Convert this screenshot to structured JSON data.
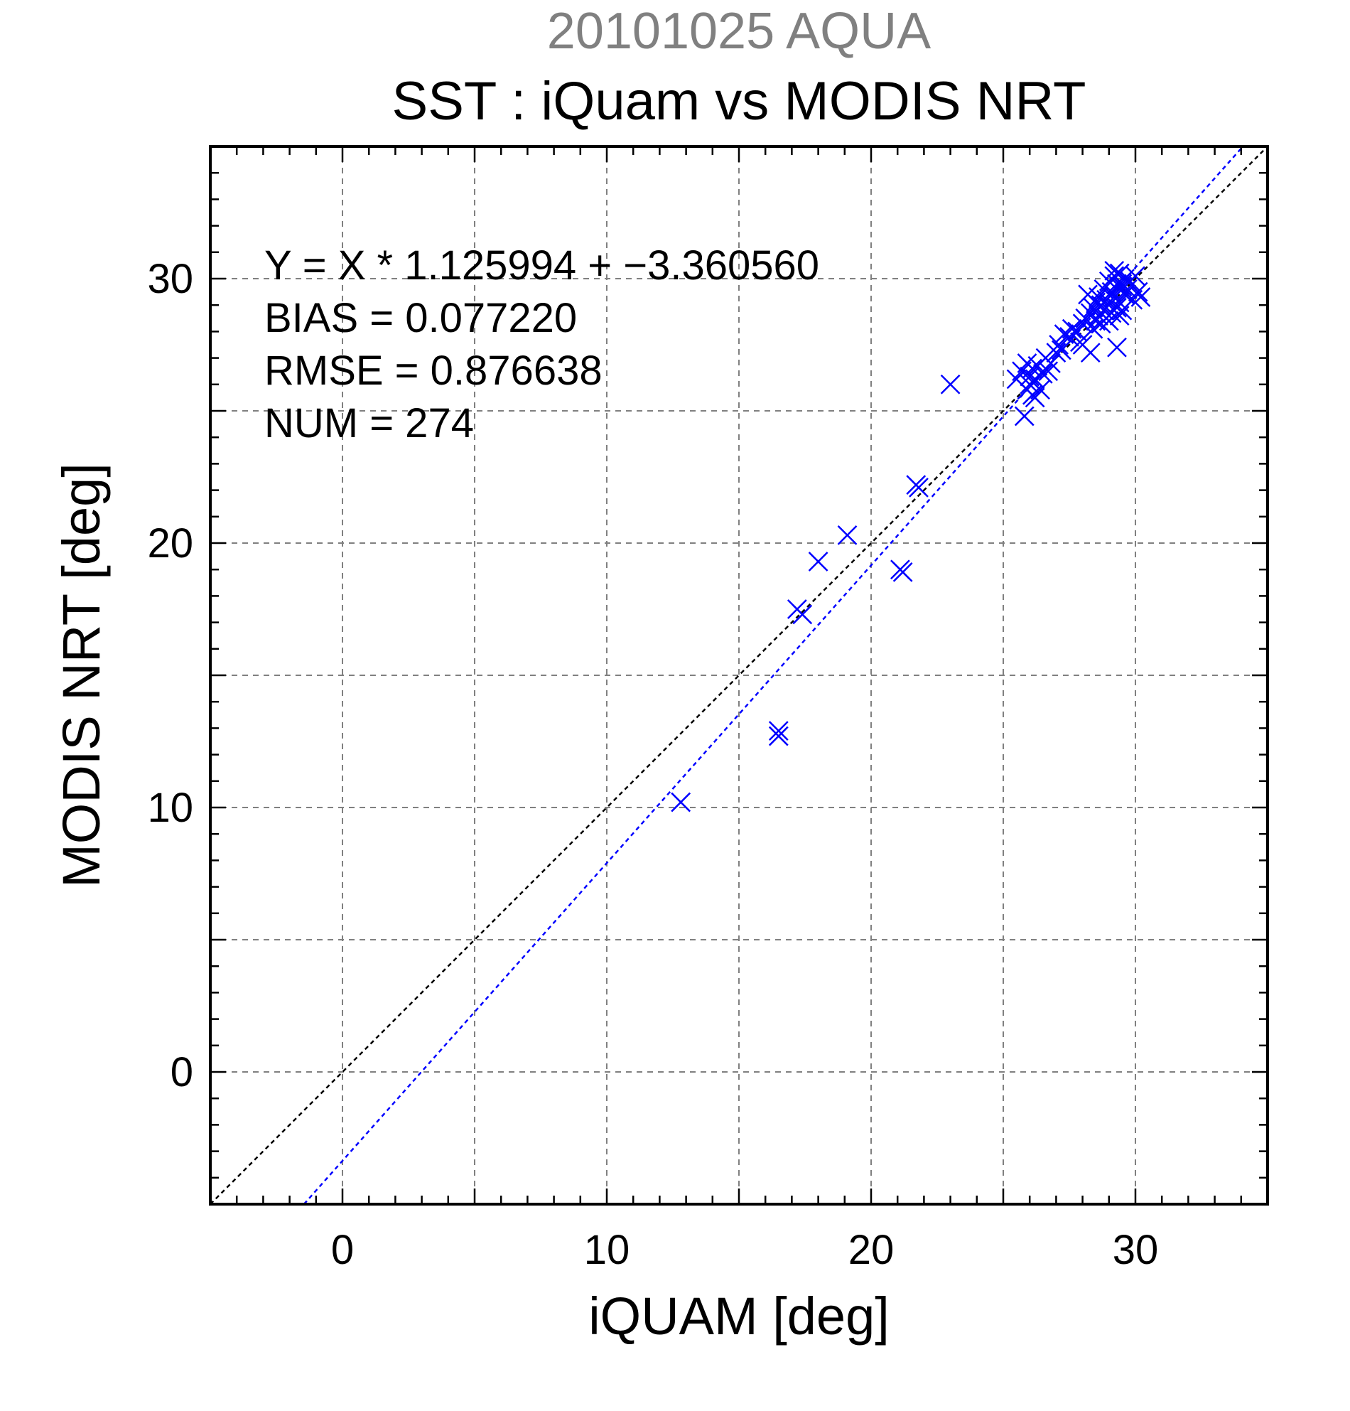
{
  "chart_data": {
    "type": "scatter",
    "date_label": "20101025 AQUA",
    "title": "SST : iQuam vs MODIS NRT",
    "xlabel": "iQUAM [deg]",
    "ylabel": "MODIS NRT [deg]",
    "xlim": [
      -5,
      35
    ],
    "ylim": [
      -5,
      35
    ],
    "x_ticks": [
      0,
      10,
      20,
      30
    ],
    "y_ticks": [
      0,
      10,
      20,
      30
    ],
    "x_tick_labels": [
      "0",
      "10",
      "20",
      "30"
    ],
    "y_tick_labels": [
      "0",
      "10",
      "20",
      "30"
    ],
    "grid_step": 5,
    "minor_tick_step": 1,
    "grid": true,
    "stats": {
      "equation": "Y = X * 1.125994 + −3.360560",
      "bias": "BIAS = 0.077220",
      "rmse": "RMSE = 0.876638",
      "num": "NUM = 274"
    },
    "fit": {
      "slope": 1.125994,
      "intercept": -3.36056
    },
    "colors": {
      "points": "#0000ff",
      "fit_line": "#0000ff",
      "identity_line": "#000000",
      "grid": "#808080",
      "date_label": "#808080",
      "text": "#000000"
    },
    "series": [
      {
        "marker": "x",
        "x": [
          12.8,
          16.5,
          16.5,
          17.2,
          17.4,
          18.0,
          19.1,
          21.1,
          21.2,
          21.7,
          21.8,
          23.0,
          25.5,
          25.7,
          25.8,
          25.9,
          25.9,
          26.0,
          26.0,
          26.1,
          26.1,
          26.2,
          26.2,
          26.3,
          26.4,
          26.5,
          26.6,
          26.7,
          26.8,
          27.0,
          27.1,
          27.2,
          27.3,
          27.5,
          27.6,
          27.8,
          27.9,
          28.0,
          28.1,
          28.2,
          28.3,
          28.3,
          28.4,
          28.4,
          28.5,
          28.5,
          28.6,
          28.6,
          28.7,
          28.7,
          28.8,
          28.8,
          28.9,
          28.9,
          29.0,
          29.0,
          29.1,
          29.1,
          29.2,
          29.2,
          29.3,
          29.3,
          29.3,
          29.4,
          29.4,
          29.5,
          29.5,
          29.6,
          29.6,
          29.7,
          29.8,
          29.9,
          30.0,
          30.1,
          30.2,
          29.2,
          29.4,
          28.0,
          29.0,
          29.5
        ],
        "y": [
          10.2,
          12.7,
          12.9,
          17.5,
          17.3,
          19.3,
          20.3,
          19.0,
          18.9,
          22.2,
          22.1,
          26.0,
          26.2,
          26.5,
          24.8,
          26.8,
          25.8,
          26.3,
          26.0,
          25.6,
          26.6,
          26.2,
          25.5,
          26.7,
          25.8,
          26.4,
          27.0,
          26.5,
          26.8,
          27.2,
          27.5,
          27.3,
          27.9,
          27.8,
          28.1,
          28.0,
          27.6,
          28.3,
          28.5,
          29.4,
          27.2,
          28.7,
          28.9,
          28.1,
          29.1,
          28.4,
          29.3,
          28.6,
          29.0,
          28.3,
          29.6,
          28.8,
          29.2,
          28.5,
          29.9,
          29.0,
          29.5,
          28.7,
          30.1,
          29.3,
          27.4,
          29.8,
          28.9,
          30.2,
          29.1,
          29.7,
          28.8,
          30.0,
          29.4,
          29.6,
          29.9,
          29.2,
          30.1,
          29.5,
          29.3,
          30.3,
          28.6,
          27.5,
          28.4,
          29.8
        ]
      }
    ]
  }
}
